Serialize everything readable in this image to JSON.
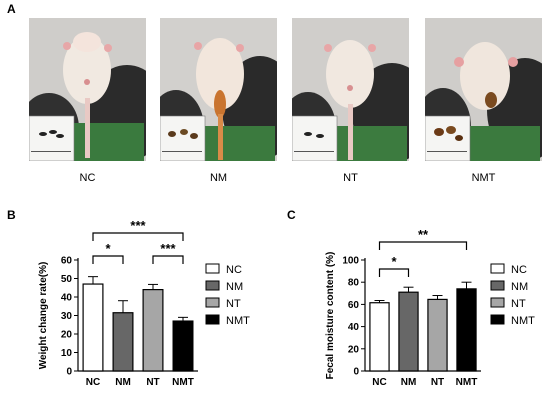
{
  "panels": {
    "a": "A",
    "b": "B",
    "c": "C"
  },
  "photos": [
    {
      "label": "NC"
    },
    {
      "label": "NM"
    },
    {
      "label": "NT"
    },
    {
      "label": "NMT"
    }
  ],
  "chart_data": [
    {
      "type": "bar",
      "panel": "B",
      "categories": [
        "NC",
        "NM",
        "NT",
        "NMT"
      ],
      "values": [
        47,
        31.5,
        44,
        27
      ],
      "errors": [
        4,
        6.5,
        2.8,
        2
      ],
      "ylabel": "Weight change rate(%)",
      "ylim": [
        0,
        60
      ],
      "yticks": [
        0,
        10,
        20,
        30,
        40,
        50,
        60
      ],
      "colors": [
        "#ffffff",
        "#676767",
        "#a6a6a6",
        "#000000"
      ],
      "legend": [
        "NC",
        "NM",
        "NT",
        "NMT"
      ],
      "legend_position": "right",
      "significance": [
        {
          "from": "NC",
          "to": "NMT",
          "label": "***"
        },
        {
          "from": "NC",
          "to": "NM",
          "label": "*"
        },
        {
          "from": "NT",
          "to": "NMT",
          "label": "***"
        }
      ]
    },
    {
      "type": "bar",
      "panel": "C",
      "categories": [
        "NC",
        "NM",
        "NT",
        "NMT"
      ],
      "values": [
        61.5,
        71,
        64.5,
        74
      ],
      "errors": [
        2,
        4.5,
        3.5,
        6
      ],
      "ylabel": "Fecal moisture content (%)",
      "ylim": [
        0,
        100
      ],
      "yticks": [
        0,
        20,
        40,
        60,
        80,
        100
      ],
      "colors": [
        "#ffffff",
        "#676767",
        "#a6a6a6",
        "#000000"
      ],
      "legend": [
        "NC",
        "NM",
        "NT",
        "NMT"
      ],
      "legend_position": "right",
      "significance": [
        {
          "from": "NC",
          "to": "NMT",
          "label": "**"
        },
        {
          "from": "NC",
          "to": "NM",
          "label": "*"
        }
      ]
    }
  ]
}
